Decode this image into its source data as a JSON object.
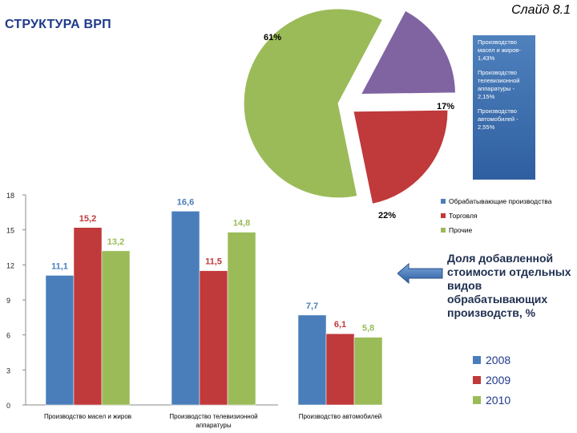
{
  "slide_label": "Слайд 8.1",
  "page_title": "СТРУКТУРА ВРП",
  "caption": "Доля добавленной стоимости отдельных видов обрабатывающих производств, %",
  "callout": [
    "Производство масел и жиров- 1,43%",
    "Производство телевизионной аппаратуры - 2,15%",
    "Производство автомобилей - 2,55%"
  ],
  "colors": {
    "blue": "#4a7ebb",
    "red": "#c0393b",
    "green": "#9bbb59",
    "purple": "#8064a2",
    "callout": "#4f81bd"
  },
  "chart_data": [
    {
      "type": "pie",
      "slices": [
        {
          "name": "Обрабатывающие производства",
          "value": 17,
          "label": "17%",
          "color": "#8064a2"
        },
        {
          "name": "Торговля",
          "value": 22,
          "label": "22%",
          "color": "#c0393b"
        },
        {
          "name": "Прочие",
          "value": 61,
          "label": "61%",
          "color": "#9bbb59"
        }
      ],
      "legend": [
        {
          "name": "Обрабатывающие производства",
          "color": "#4a7ebb"
        },
        {
          "name": "Торговля",
          "color": "#c0393b"
        },
        {
          "name": "Прочие",
          "color": "#9bbb59"
        }
      ],
      "legend_position": "bottom-right"
    },
    {
      "type": "bar",
      "categories": [
        "Производство масел и жиров",
        "Производство телевизионной аппаратуры",
        "Производство автомобилей"
      ],
      "series": [
        {
          "name": "2008",
          "values": [
            11.1,
            16.6,
            7.7
          ],
          "labels": [
            "11,1",
            "16,6",
            "7,7"
          ],
          "color": "#4a7ebb"
        },
        {
          "name": "2009",
          "values": [
            15.2,
            11.5,
            6.1
          ],
          "labels": [
            "15,2",
            "11,5",
            "6,1"
          ],
          "color": "#c0393b"
        },
        {
          "name": "2010",
          "values": [
            13.2,
            14.8,
            5.8
          ],
          "labels": [
            "13,2",
            "14,8",
            "5,8"
          ],
          "color": "#9bbb59"
        }
      ],
      "ylim": [
        0,
        18
      ],
      "yticks": [
        0,
        3,
        6,
        9,
        12,
        15,
        18
      ],
      "legend_position": "bottom-right",
      "grid": false
    }
  ]
}
